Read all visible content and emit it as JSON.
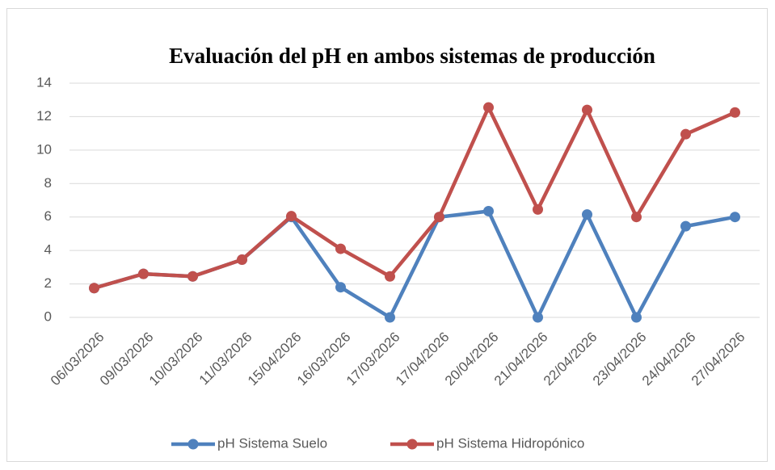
{
  "chart_data": {
    "type": "line",
    "title": "Evaluación del pH en ambos sistemas de producción",
    "categories": [
      "06/03/2026",
      "09/03/2026",
      "10/03/2026",
      "11/03/2026",
      "15/04/2026",
      "16/03/2026",
      "17/03/2026",
      "17/04/2026",
      "20/04/2026",
      "21/04/2026",
      "22/04/2026",
      "23/04/2026",
      "24/04/2026",
      "27/04/2026"
    ],
    "series": [
      {
        "name": "pH Sistema Suelo",
        "color": "#4f81bd",
        "values": [
          1.75,
          2.6,
          2.45,
          3.45,
          6.0,
          1.8,
          0,
          6.0,
          6.35,
          0,
          6.15,
          0,
          5.45,
          6.0
        ]
      },
      {
        "name": "pH Sistema Hidropónico",
        "color": "#c0504d",
        "values": [
          1.75,
          2.6,
          2.45,
          3.45,
          6.05,
          4.1,
          2.45,
          6.0,
          12.55,
          6.45,
          12.4,
          6.0,
          10.95,
          12.25
        ]
      }
    ],
    "ylim": [
      0,
      14
    ],
    "yticks": [
      0,
      2,
      4,
      6,
      8,
      10,
      12,
      14
    ],
    "grid": true,
    "legend": "bottom"
  }
}
